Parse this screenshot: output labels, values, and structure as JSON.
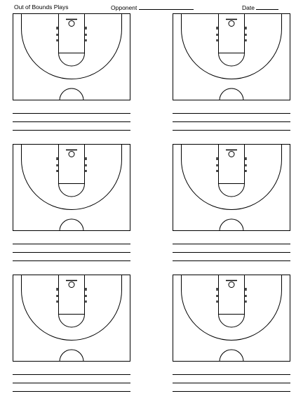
{
  "header": {
    "title": "Out of Bounds Plays",
    "opponent_label": "Opponent",
    "date_label": "Date"
  },
  "diagrams": [
    {
      "note_lines": 3
    },
    {
      "note_lines": 3
    },
    {
      "note_lines": 3
    },
    {
      "note_lines": 3
    },
    {
      "note_lines": 3
    },
    {
      "note_lines": 3
    }
  ]
}
